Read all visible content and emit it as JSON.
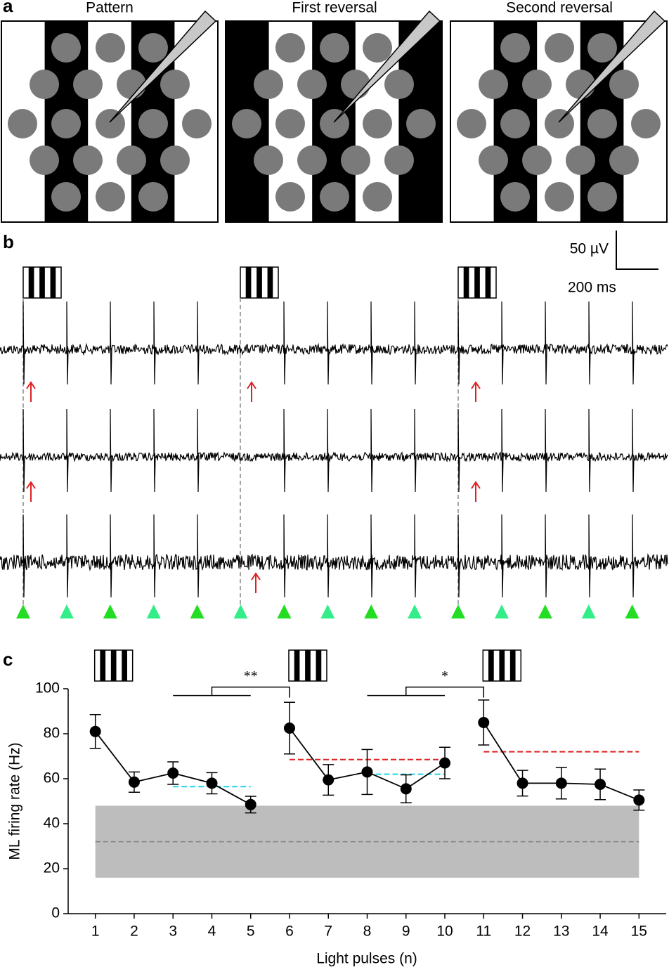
{
  "panel_labels": [
    "a",
    "b",
    "c"
  ],
  "panel_a": {
    "titles": [
      "Pattern",
      "First reversal",
      "Second reversal"
    ]
  },
  "panel_b": {
    "scale_bar": [
      "50 µV",
      "200 ms"
    ]
  },
  "chart_data": {
    "type": "line",
    "xlabel": "Light pulses (n)",
    "ylabel": "ML firing rate (Hz)",
    "x": [
      1,
      2,
      3,
      4,
      5,
      6,
      7,
      8,
      9,
      10,
      11,
      12,
      13,
      14,
      15
    ],
    "values": [
      81,
      58.5,
      62.5,
      58,
      48.5,
      82.5,
      59.5,
      63,
      55.5,
      67,
      85,
      58,
      58,
      57.5,
      50.5
    ],
    "errors": [
      7.5,
      4.5,
      5,
      4.7,
      3.7,
      11.5,
      6.8,
      10,
      6.2,
      7,
      10,
      5.7,
      7,
      6.8,
      4.5
    ],
    "color": "#000000",
    "xlim": [
      0.3,
      15.7
    ],
    "ylim": [
      0,
      100
    ],
    "xticks": [
      1,
      2,
      3,
      4,
      5,
      6,
      7,
      8,
      9,
      10,
      11,
      12,
      13,
      14,
      15
    ],
    "yticks": [
      0,
      20,
      40,
      60,
      80,
      100
    ],
    "reversals": [
      1,
      6,
      11
    ],
    "band": {
      "x": [
        1,
        15
      ],
      "y": [
        16,
        48
      ],
      "mean": 32,
      "color": "#bdbdbd"
    },
    "reference_lines": [
      {
        "x": [
          3,
          5
        ],
        "y": 56.5,
        "color": "#22d3e6"
      },
      {
        "x": [
          8,
          10
        ],
        "y": 62,
        "color": "#22d3e6"
      },
      {
        "x": [
          6,
          10
        ],
        "y": 68.5,
        "color": "#e02020"
      },
      {
        "x": [
          11,
          15
        ],
        "y": 72,
        "color": "#e02020"
      }
    ],
    "significance": [
      {
        "label": "**",
        "x": [
          3,
          5
        ],
        "to": 6,
        "y": 97
      },
      {
        "label": "*",
        "x": [
          8,
          10
        ],
        "to": 11,
        "y": 97
      }
    ]
  }
}
